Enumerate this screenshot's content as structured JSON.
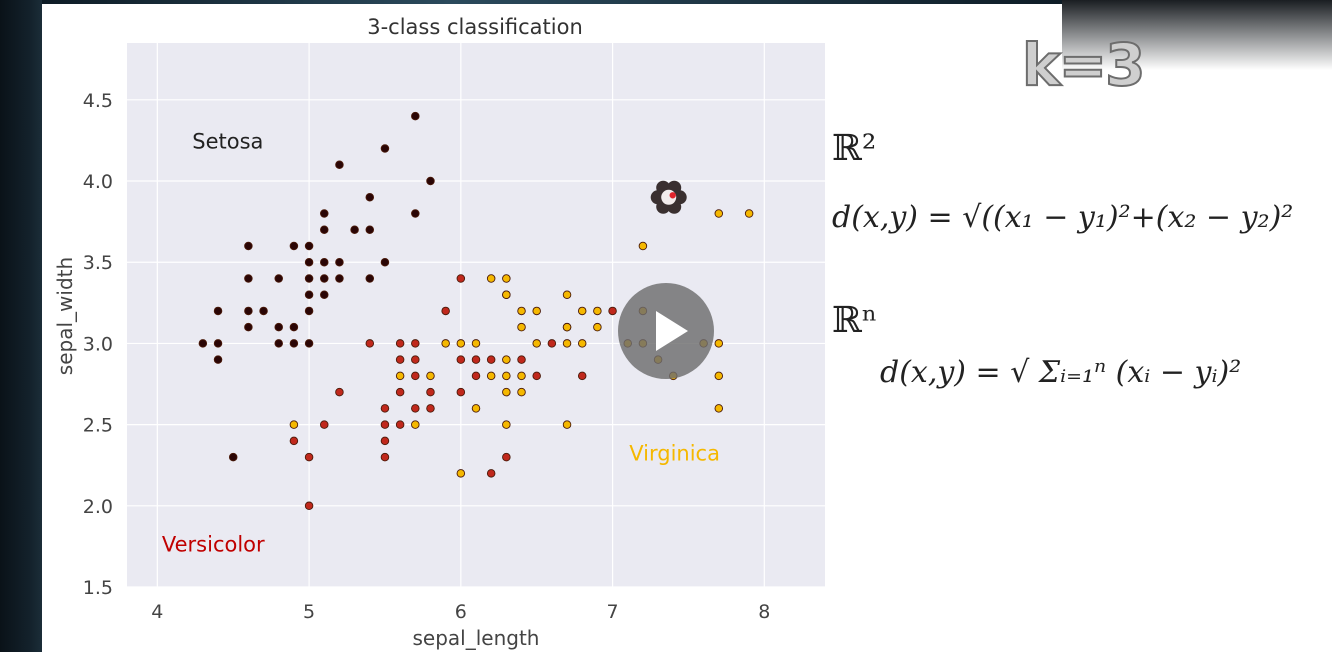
{
  "heading": {
    "k_label": "k=3"
  },
  "chart_data": {
    "type": "scatter",
    "title": "3-class classification",
    "xlabel": "sepal_length",
    "ylabel": "sepal_width",
    "xlim": [
      3.8,
      8.4
    ],
    "ylim": [
      1.5,
      4.85
    ],
    "xticks": [
      "4",
      "5",
      "6",
      "7",
      "8"
    ],
    "yticks": [
      "1.5",
      "2.0",
      "2.5",
      "3.0",
      "3.5",
      "4.0",
      "4.5"
    ],
    "grid": true,
    "series": [
      {
        "color": "#2a0505",
        "points": [
          [
            4.3,
            3.0
          ],
          [
            4.4,
            3.2
          ],
          [
            4.4,
            3.0
          ],
          [
            4.4,
            2.9
          ],
          [
            4.5,
            2.3
          ],
          [
            4.6,
            3.6
          ],
          [
            4.6,
            3.4
          ],
          [
            4.6,
            3.2
          ],
          [
            4.6,
            3.1
          ],
          [
            4.7,
            3.2
          ],
          [
            4.8,
            3.4
          ],
          [
            4.8,
            3.1
          ],
          [
            4.8,
            3.0
          ],
          [
            4.9,
            3.6
          ],
          [
            4.9,
            3.1
          ],
          [
            4.9,
            3.0
          ],
          [
            5.0,
            3.6
          ],
          [
            5.0,
            3.5
          ],
          [
            5.0,
            3.4
          ],
          [
            5.0,
            3.3
          ],
          [
            5.0,
            3.2
          ],
          [
            5.0,
            3.0
          ],
          [
            5.1,
            3.8
          ],
          [
            5.1,
            3.7
          ],
          [
            5.1,
            3.5
          ],
          [
            5.1,
            3.4
          ],
          [
            5.1,
            3.3
          ],
          [
            5.2,
            4.1
          ],
          [
            5.2,
            3.5
          ],
          [
            5.2,
            3.4
          ],
          [
            5.3,
            3.7
          ],
          [
            5.4,
            3.9
          ],
          [
            5.4,
            3.7
          ],
          [
            5.4,
            3.4
          ],
          [
            5.5,
            4.2
          ],
          [
            5.5,
            3.5
          ],
          [
            5.7,
            4.4
          ],
          [
            5.7,
            3.8
          ],
          [
            5.8,
            4.0
          ]
        ]
      },
      {
        "color": "#c0281c",
        "points": [
          [
            4.9,
            2.4
          ],
          [
            5.0,
            2.3
          ],
          [
            5.0,
            2.0
          ],
          [
            5.1,
            2.5
          ],
          [
            5.2,
            2.7
          ],
          [
            5.4,
            3.0
          ],
          [
            5.5,
            2.6
          ],
          [
            5.5,
            2.5
          ],
          [
            5.5,
            2.4
          ],
          [
            5.5,
            2.3
          ],
          [
            5.6,
            3.0
          ],
          [
            5.6,
            2.9
          ],
          [
            5.6,
            2.7
          ],
          [
            5.6,
            2.5
          ],
          [
            5.7,
            3.0
          ],
          [
            5.7,
            2.9
          ],
          [
            5.7,
            2.8
          ],
          [
            5.7,
            2.6
          ],
          [
            5.8,
            2.7
          ],
          [
            5.8,
            2.6
          ],
          [
            5.9,
            3.2
          ],
          [
            6.0,
            3.4
          ],
          [
            6.0,
            2.9
          ],
          [
            6.0,
            2.7
          ],
          [
            6.1,
            2.9
          ],
          [
            6.1,
            2.8
          ],
          [
            6.2,
            2.9
          ],
          [
            6.2,
            2.2
          ],
          [
            6.3,
            3.3
          ],
          [
            6.3,
            2.3
          ],
          [
            6.4,
            2.9
          ],
          [
            6.5,
            2.8
          ],
          [
            6.6,
            3.0
          ],
          [
            6.7,
            3.1
          ],
          [
            6.8,
            2.8
          ],
          [
            7.0,
            3.2
          ]
        ]
      },
      {
        "color": "#f5b800",
        "points": [
          [
            4.9,
            2.5
          ],
          [
            5.6,
            2.8
          ],
          [
            5.7,
            2.5
          ],
          [
            5.8,
            2.8
          ],
          [
            5.9,
            3.0
          ],
          [
            6.0,
            3.0
          ],
          [
            6.0,
            2.2
          ],
          [
            6.1,
            3.0
          ],
          [
            6.1,
            2.6
          ],
          [
            6.2,
            3.4
          ],
          [
            6.2,
            2.8
          ],
          [
            6.3,
            3.4
          ],
          [
            6.3,
            3.3
          ],
          [
            6.3,
            2.9
          ],
          [
            6.3,
            2.8
          ],
          [
            6.3,
            2.7
          ],
          [
            6.3,
            2.5
          ],
          [
            6.4,
            3.2
          ],
          [
            6.4,
            3.1
          ],
          [
            6.4,
            2.8
          ],
          [
            6.4,
            2.7
          ],
          [
            6.5,
            3.2
          ],
          [
            6.5,
            3.0
          ],
          [
            6.7,
            3.3
          ],
          [
            6.7,
            3.1
          ],
          [
            6.7,
            3.0
          ],
          [
            6.7,
            2.5
          ],
          [
            6.8,
            3.2
          ],
          [
            6.8,
            3.0
          ],
          [
            6.9,
            3.2
          ],
          [
            6.9,
            3.1
          ],
          [
            7.1,
            3.0
          ],
          [
            7.2,
            3.6
          ],
          [
            7.2,
            3.2
          ],
          [
            7.2,
            3.0
          ],
          [
            7.3,
            2.9
          ],
          [
            7.4,
            2.8
          ],
          [
            7.6,
            3.0
          ],
          [
            7.7,
            3.8
          ],
          [
            7.7,
            3.0
          ],
          [
            7.7,
            2.8
          ],
          [
            7.7,
            2.6
          ],
          [
            7.9,
            3.8
          ]
        ]
      }
    ],
    "annotations": [
      {
        "text": "Setosa",
        "x": 4.23,
        "y": 4.2,
        "color": "#222222"
      },
      {
        "text": "Versicolor",
        "x": 4.03,
        "y": 1.72,
        "color": "#c00000"
      },
      {
        "text": "Virginica",
        "x": 7.11,
        "y": 2.28,
        "color": "#f5b800"
      }
    ],
    "query_point": {
      "x": 7.37,
      "y": 3.9
    }
  },
  "formulas": {
    "r2": "ℝ²",
    "eq1": "d(x,y) = √((x₁ − y₁)²+(x₂ − y₂)²",
    "rn": "ℝⁿ",
    "eq2": "d(x,y) = √ Σᵢ₌₁ⁿ (xᵢ − yᵢ)²"
  },
  "player": {
    "play_icon": "play-icon"
  }
}
